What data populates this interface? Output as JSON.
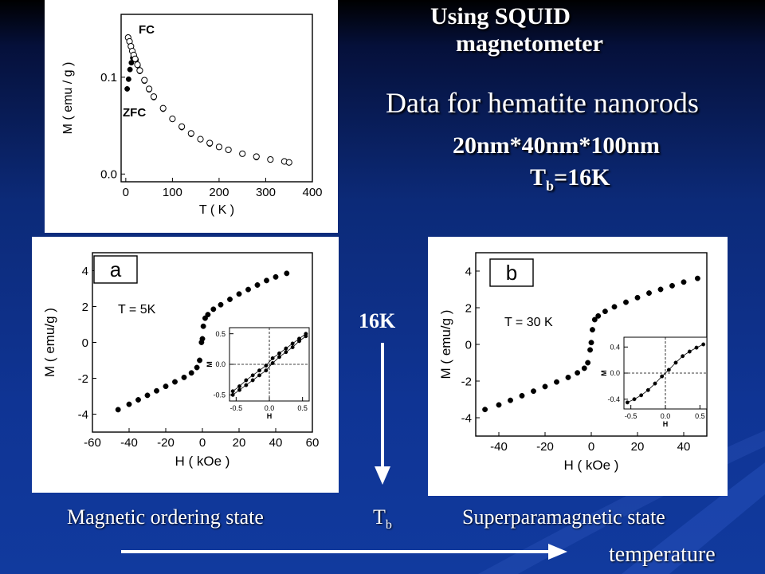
{
  "slide": {
    "title_line1": "Using SQUID",
    "title_line2": "magnetometer",
    "subtitle": "Data for hematite nanorods",
    "dimensions": "20nm*40nm*100nm",
    "tb_main": "T",
    "tb_sub": "b",
    "tb_value": "=16K",
    "arrow_label": "16K",
    "left_state": "Magnetic ordering state",
    "middle_main": "T",
    "middle_sub": "b",
    "right_state": "Superparamagnetic state",
    "temperature_label": "temperature"
  },
  "colors": {
    "marker": "#000000",
    "panel_bg": "#ffffff",
    "text": "#ffffff"
  },
  "chart_data": [
    {
      "type": "scatter",
      "xlabel": "T ( K )",
      "ylabel": "M ( emu / g )",
      "xlim": [
        -10,
        400
      ],
      "ylim": [
        -0.008,
        0.165
      ],
      "xticks": [
        0,
        100,
        200,
        300,
        400
      ],
      "yticks": [
        0.0,
        0.1
      ],
      "ytick_labels": [
        "0.0",
        "0.1"
      ],
      "annotations": [
        "FC",
        "ZFC"
      ],
      "series": [
        {
          "name": "FC",
          "marker": "open",
          "x": [
            5,
            8,
            11,
            14,
            17,
            20,
            25,
            30,
            40,
            50,
            60,
            80,
            100,
            120,
            140,
            160,
            180,
            200,
            220,
            250,
            280,
            310,
            340,
            350
          ],
          "y": [
            0.141,
            0.137,
            0.132,
            0.127,
            0.123,
            0.119,
            0.113,
            0.107,
            0.097,
            0.088,
            0.08,
            0.068,
            0.057,
            0.049,
            0.042,
            0.036,
            0.032,
            0.028,
            0.025,
            0.021,
            0.018,
            0.015,
            0.013,
            0.012
          ]
        },
        {
          "name": "ZFC",
          "marker": "filled",
          "x": [
            3,
            6,
            9,
            12,
            15,
            18,
            22,
            26,
            30,
            40,
            50,
            60,
            80,
            100,
            120,
            140,
            160,
            180,
            200,
            220,
            250,
            280,
            310,
            340,
            350
          ],
          "y": [
            0.088,
            0.098,
            0.108,
            0.115,
            0.12,
            0.122,
            0.118,
            0.112,
            0.106,
            0.096,
            0.087,
            0.079,
            0.067,
            0.057,
            0.048,
            0.041,
            0.036,
            0.031,
            0.028,
            0.025,
            0.021,
            0.017,
            0.015,
            0.013,
            0.012
          ]
        }
      ]
    },
    {
      "type": "scatter",
      "panel_label": "a",
      "annotation": "T = 5K",
      "xlabel": "H ( kOe )",
      "ylabel": "M ( emu/g )",
      "xlim": [
        -60,
        60
      ],
      "ylim": [
        -5,
        5
      ],
      "xticks": [
        -60,
        -40,
        -20,
        0,
        20,
        40,
        60
      ],
      "yticks": [
        -4,
        -2,
        0,
        2,
        4
      ],
      "series": [
        {
          "name": "",
          "x": [
            -46,
            -40,
            -35,
            -30,
            -25,
            -20,
            -15,
            -10,
            -6,
            -3,
            -1.5,
            -0.5,
            0,
            0.5,
            1.5,
            3,
            6,
            10,
            15,
            20,
            25,
            30,
            35,
            40,
            46
          ],
          "y": [
            -3.75,
            -3.45,
            -3.2,
            -2.95,
            -2.7,
            -2.45,
            -2.2,
            -1.95,
            -1.7,
            -1.4,
            -1.0,
            0.0,
            0.2,
            0.9,
            1.35,
            1.55,
            1.85,
            2.1,
            2.4,
            2.7,
            2.95,
            3.2,
            3.45,
            3.65,
            3.85
          ]
        }
      ],
      "inset": {
        "xlabel": "H",
        "ylabel": "M",
        "xlim": [
          -0.6,
          0.6
        ],
        "ylim": [
          -0.6,
          0.6
        ],
        "xticks": [
          -0.5,
          0.0,
          0.5
        ],
        "yticks": [
          -0.5,
          0.0,
          0.5
        ],
        "xtick_labels": [
          "-0.5",
          "0.0",
          "0.5"
        ],
        "ytick_labels": [
          "-0.5",
          "0.0",
          "0.5"
        ],
        "series": [
          {
            "name": "",
            "x": [
              -0.55,
              -0.45,
              -0.35,
              -0.25,
              -0.15,
              -0.05,
              0.05,
              0.15,
              0.25,
              0.35,
              0.45,
              0.55
            ],
            "y": [
              -0.5,
              -0.42,
              -0.34,
              -0.26,
              -0.18,
              -0.1,
              0.02,
              0.12,
              0.2,
              0.28,
              0.38,
              0.46
            ]
          },
          {
            "name": "",
            "x": [
              -0.55,
              -0.45,
              -0.35,
              -0.25,
              -0.15,
              -0.05,
              0.05,
              0.15,
              0.25,
              0.35,
              0.45,
              0.55
            ],
            "y": [
              -0.44,
              -0.36,
              -0.26,
              -0.18,
              -0.1,
              -0.02,
              0.1,
              0.18,
              0.26,
              0.34,
              0.42,
              0.5
            ]
          }
        ]
      }
    },
    {
      "type": "scatter",
      "panel_label": "b",
      "annotation": "T = 30 K",
      "xlabel": "H ( kOe )",
      "ylabel": "M ( emu/g )",
      "xlim": [
        -50,
        50
      ],
      "ylim": [
        -5,
        5
      ],
      "xticks": [
        -40,
        -20,
        0,
        20,
        40
      ],
      "yticks": [
        -4,
        -2,
        0,
        2,
        4
      ],
      "series": [
        {
          "name": "",
          "x": [
            -46,
            -40,
            -35,
            -30,
            -25,
            -20,
            -15,
            -10,
            -6,
            -3,
            -1.5,
            -0.5,
            0,
            0.5,
            1.5,
            3,
            6,
            10,
            15,
            20,
            25,
            30,
            35,
            40,
            46
          ],
          "y": [
            -3.55,
            -3.3,
            -3.05,
            -2.8,
            -2.55,
            -2.3,
            -2.05,
            -1.8,
            -1.55,
            -1.3,
            -1.0,
            -0.3,
            0.1,
            0.8,
            1.35,
            1.55,
            1.8,
            2.05,
            2.3,
            2.55,
            2.8,
            3.0,
            3.2,
            3.4,
            3.6
          ]
        }
      ],
      "inset": {
        "xlabel": "H",
        "ylabel": "M",
        "xlim": [
          -0.6,
          0.6
        ],
        "ylim": [
          -0.55,
          0.55
        ],
        "xticks": [
          -0.5,
          0.0,
          0.5
        ],
        "yticks": [
          -0.4,
          0.0,
          0.4
        ],
        "xtick_labels": [
          "-0.5",
          "0.0",
          "0.5"
        ],
        "ytick_labels": [
          "-0.4",
          "0.0",
          "0.4"
        ],
        "series": [
          {
            "name": "",
            "x": [
              -0.55,
              -0.45,
              -0.35,
              -0.25,
              -0.15,
              -0.05,
              0.05,
              0.15,
              0.25,
              0.35,
              0.45,
              0.55
            ],
            "y": [
              -0.45,
              -0.4,
              -0.34,
              -0.26,
              -0.16,
              -0.05,
              0.05,
              0.16,
              0.26,
              0.33,
              0.39,
              0.44
            ]
          }
        ]
      }
    }
  ]
}
